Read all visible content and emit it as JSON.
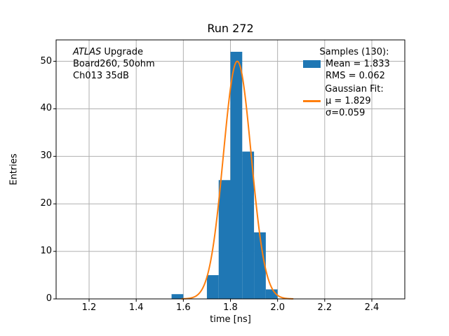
{
  "annotation": {
    "line1_italic": "ATLAS",
    "line1_rest": " Upgrade",
    "line2": "Board260, 50ohm",
    "line3": "Ch013 35dB"
  },
  "legend": {
    "samples_header": "Samples (130):",
    "mean_label": "Mean = 1.833",
    "rms_label": "RMS = 0.062",
    "fit_header": "Gaussian Fit:",
    "mu_label": "μ = 1.829",
    "sigma_label": "σ=0.059"
  },
  "chart_data": {
    "type": "histogram",
    "title": "Run 272",
    "xlabel": "time [ns]",
    "ylabel": "Entries",
    "xlim": [
      1.06,
      2.54
    ],
    "ylim": [
      0,
      54.5
    ],
    "xticks": [
      1.2,
      1.4,
      1.6,
      1.8,
      2.0,
      2.2,
      2.4
    ],
    "yticks": [
      0,
      10,
      20,
      30,
      40,
      50
    ],
    "grid": true,
    "legend_position": "upper right",
    "total_samples": 130,
    "bin_edges": [
      1.55,
      1.6,
      1.65,
      1.7,
      1.75,
      1.8,
      1.85,
      1.9,
      1.95,
      2.0
    ],
    "counts": [
      1,
      0,
      0,
      5,
      25,
      52,
      31,
      14,
      2
    ],
    "gaussian_fit": {
      "mu": 1.829,
      "sigma": 0.059,
      "amplitude": 50
    },
    "stats": {
      "mean": 1.833,
      "rms": 0.062
    },
    "colors": {
      "histogram": "#1f77b4",
      "fit_line": "#ff7f0e",
      "grid": "#b0b0b0",
      "axis": "#000000"
    }
  }
}
